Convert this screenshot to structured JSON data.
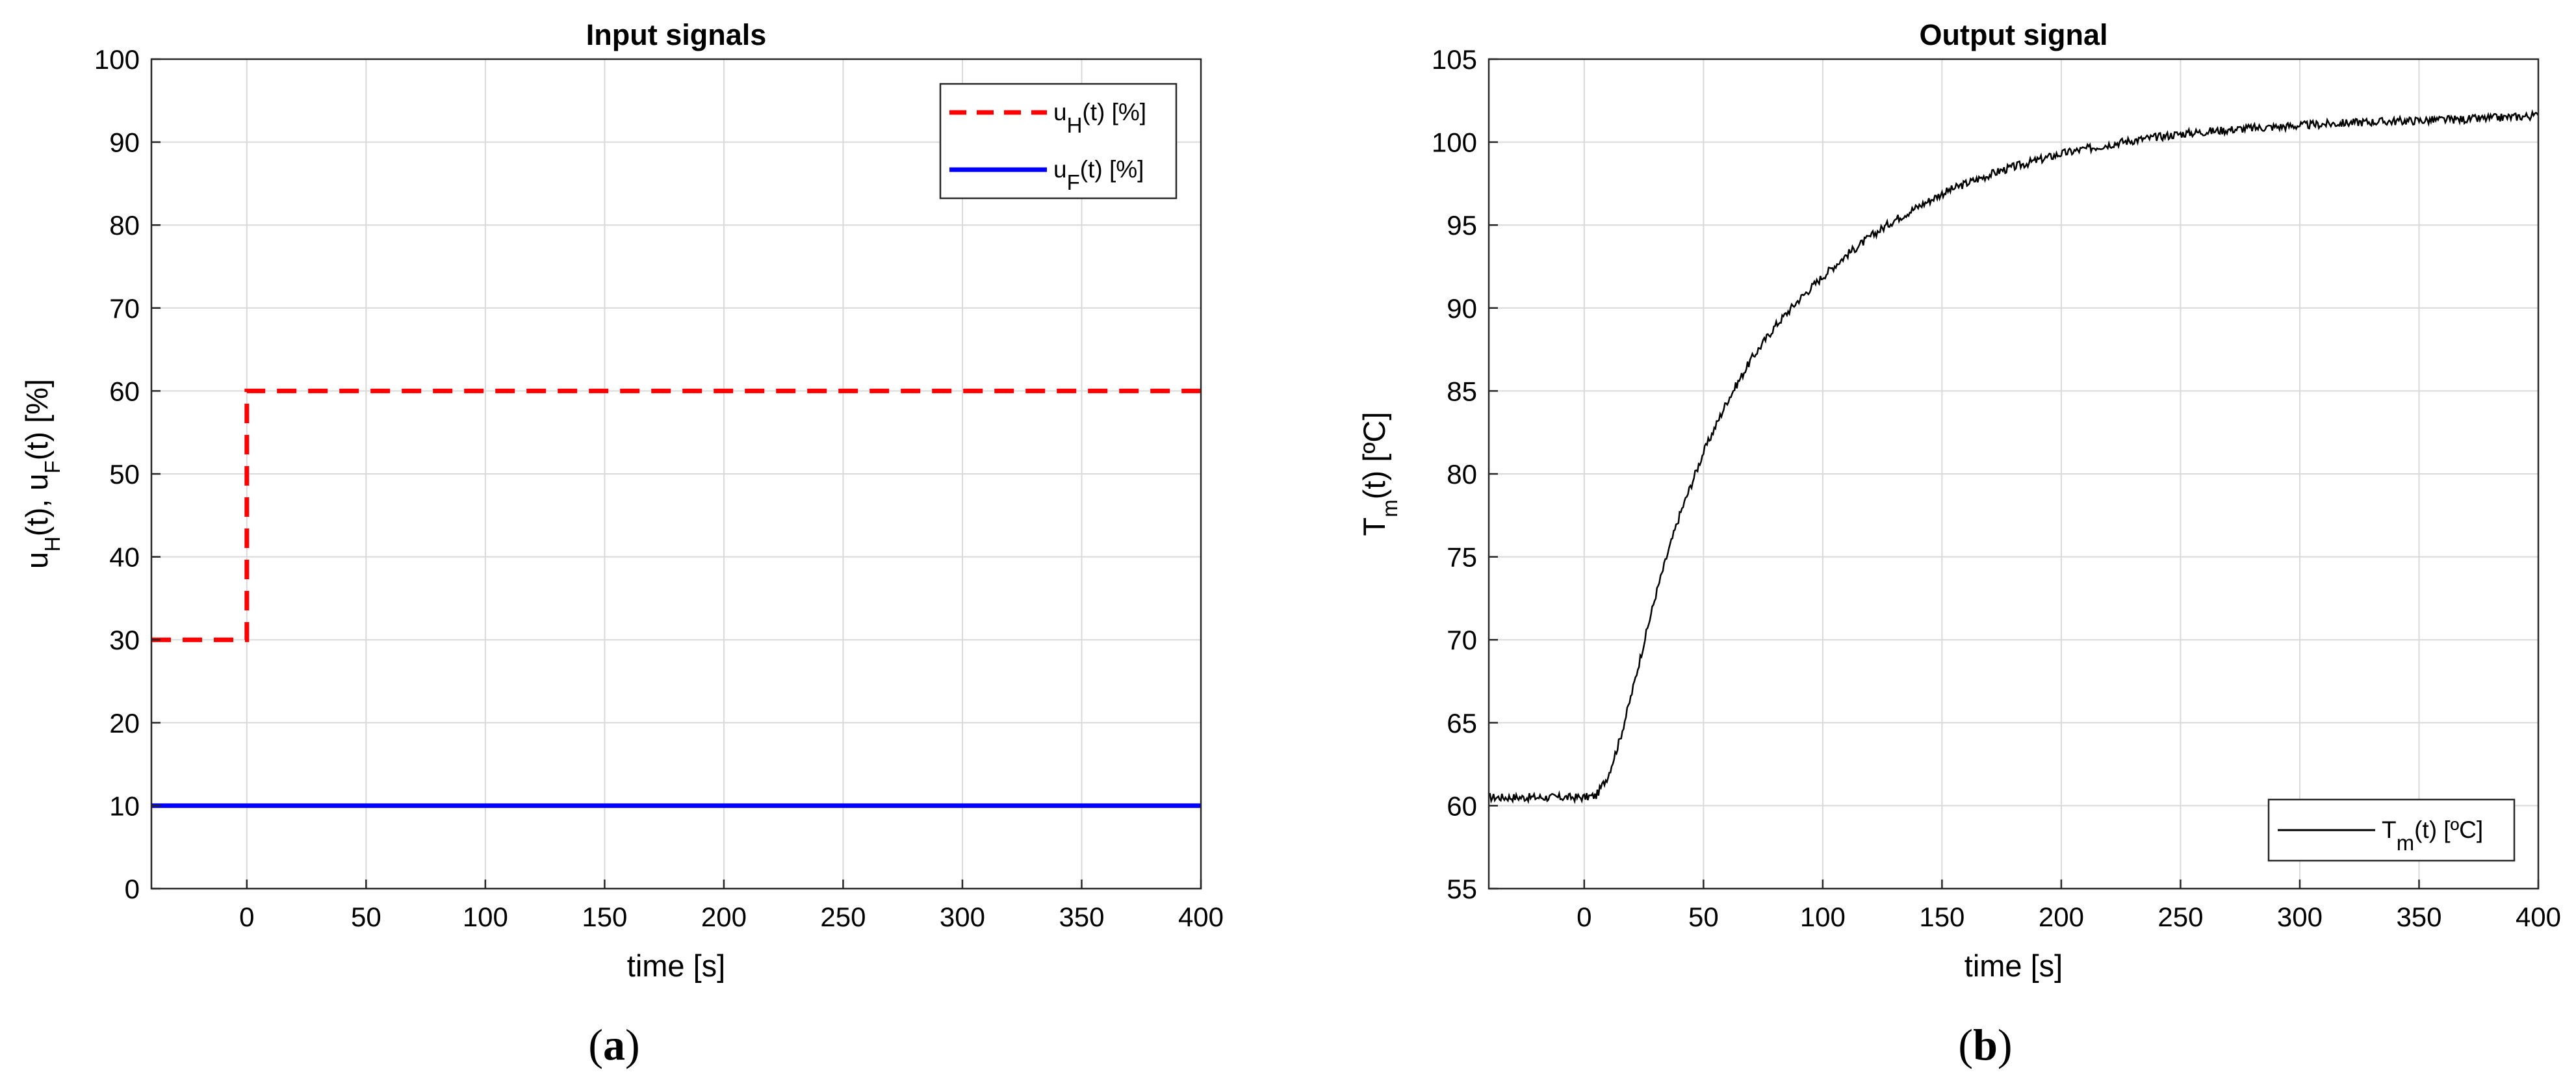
{
  "panels": [
    {
      "caption_letter": "a",
      "chart_data": {
        "type": "line",
        "title": "Input signals",
        "xlabel": "time [s]",
        "ylabel_parts": [
          "u",
          "H",
          "(t), u",
          "F",
          "(t) [%]"
        ],
        "xlim": [
          -40,
          400
        ],
        "ylim": [
          0,
          100
        ],
        "xticks": [
          0,
          50,
          100,
          150,
          200,
          250,
          300,
          350,
          400
        ],
        "yticks": [
          0,
          10,
          20,
          30,
          40,
          50,
          60,
          70,
          80,
          90,
          100
        ],
        "grid": true,
        "legend_position": "top-right",
        "series": [
          {
            "name_parts": [
              "u",
              "H",
              "(t) [%]"
            ],
            "color": "#ff0000",
            "style": "dashed",
            "x": [
              -40,
              0,
              0,
              400
            ],
            "y": [
              30,
              30,
              60,
              60
            ]
          },
          {
            "name_parts": [
              "u",
              "F",
              "(t) [%]"
            ],
            "color": "#0000ff",
            "style": "solid",
            "x": [
              -40,
              400
            ],
            "y": [
              10,
              10
            ]
          }
        ]
      }
    },
    {
      "caption_letter": "b",
      "chart_data": {
        "type": "line",
        "title": "Output signal",
        "xlabel": "time [s]",
        "ylabel_parts": [
          "T",
          "m",
          "(t) [ºC]"
        ],
        "xlim": [
          -40,
          400
        ],
        "ylim": [
          55,
          105
        ],
        "xticks": [
          0,
          50,
          100,
          150,
          200,
          250,
          300,
          350,
          400
        ],
        "yticks": [
          55,
          60,
          65,
          70,
          75,
          80,
          85,
          90,
          95,
          100,
          105
        ],
        "grid": true,
        "legend_position": "bottom-right",
        "series": [
          {
            "name_parts": [
              "T",
              "m",
              "(t) [ºC]"
            ],
            "color": "#000000",
            "style": "solid",
            "noise": 0.25,
            "x": [
              -40,
              -20,
              0,
              5,
              10,
              15,
              20,
              25,
              30,
              35,
              40,
              50,
              60,
              70,
              80,
              90,
              100,
              110,
              120,
              130,
              140,
              150,
              160,
              175,
              190,
              200,
              225,
              250,
              275,
              300,
              325,
              350,
              375,
              400
            ],
            "y": [
              60.5,
              60.5,
              60.5,
              60.6,
              61.8,
              64.0,
              66.8,
              69.8,
              72.7,
              75.2,
              77.5,
              81.3,
              84.4,
              86.9,
              88.9,
              90.5,
              91.9,
              93.2,
              94.3,
              95.3,
              96.1,
              96.9,
              97.5,
              98.3,
              98.9,
              99.3,
              100.0,
              100.5,
              100.8,
              101.0,
              101.2,
              101.3,
              101.4,
              101.6
            ]
          }
        ]
      }
    }
  ]
}
